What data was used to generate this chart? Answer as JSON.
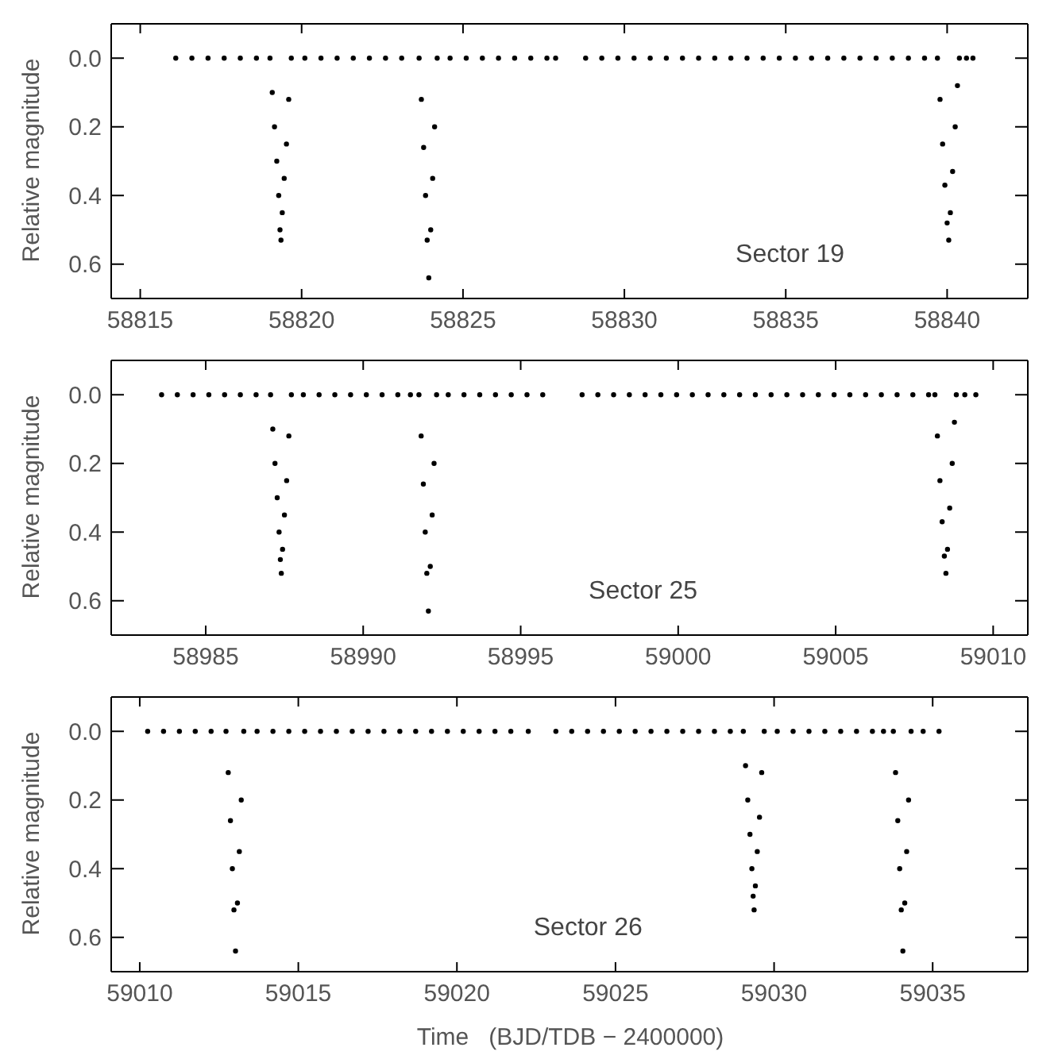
{
  "chart_data": [
    {
      "type": "scatter",
      "ylabel": "Relative magnitude",
      "annotations": [
        "Sector 19"
      ],
      "marker": "circle",
      "xlim": [
        58814.1,
        58842.5
      ],
      "xticks": [
        58815,
        58820,
        58825,
        58830,
        58835,
        58840
      ],
      "ylim": [
        0.7,
        -0.1
      ],
      "yticks": [
        {
          "value": 0,
          "label": "0.0"
        },
        {
          "value": 0.2,
          "label": "0.2"
        },
        {
          "value": 0.4,
          "label": "0.4"
        },
        {
          "value": 0.6,
          "label": "0.6"
        }
      ],
      "series": [
        {
          "color": "#000000",
          "x": [
            58816.1,
            58816.6,
            58817.1,
            58817.6,
            58818.1,
            58818.6,
            58819.02,
            58819.09,
            58819.16,
            58819.23,
            58819.29,
            58819.33,
            58819.36,
            58819.4,
            58819.46,
            58819.53,
            58819.6,
            58819.68,
            58820.1,
            58820.6,
            58821.1,
            58821.6,
            58822.1,
            58822.6,
            58823.1,
            58823.64,
            58823.71,
            58823.78,
            58823.84,
            58823.89,
            58823.94,
            58824.0,
            58824.06,
            58824.12,
            58824.2,
            58824.6,
            58825.1,
            58825.6,
            58826.1,
            58826.6,
            58827.1,
            58827.6,
            58827.87,
            58828.8,
            58829.3,
            58829.8,
            58830.3,
            58830.8,
            58831.3,
            58831.8,
            58832.3,
            58832.8,
            58833.3,
            58833.8,
            58834.3,
            58834.8,
            58835.3,
            58835.8,
            58836.3,
            58836.8,
            58837.3,
            58837.8,
            58838.3,
            58838.8,
            58839.3,
            58839.7,
            58839.78,
            58839.86,
            58839.93,
            58840.0,
            58840.05,
            58840.1,
            58840.17,
            58840.25,
            58840.32,
            58840.38,
            58840.6,
            58840.8
          ],
          "values": [
            0,
            0,
            0,
            0,
            0,
            0,
            0,
            0.1,
            0.2,
            0.3,
            0.4,
            0.5,
            0.53,
            0.45,
            0.35,
            0.25,
            0.12,
            0,
            0,
            0,
            0,
            0,
            0,
            0,
            0,
            0,
            0.12,
            0.26,
            0.4,
            0.53,
            0.64,
            0.5,
            0.35,
            0.2,
            0,
            0,
            0,
            0,
            0,
            0,
            0,
            0,
            0,
            0,
            0,
            0,
            0,
            0,
            0,
            0,
            0,
            0,
            0,
            0,
            0,
            0,
            0,
            0,
            0,
            0,
            0,
            0,
            0,
            0,
            0,
            0,
            0.12,
            0.25,
            0.37,
            0.48,
            0.53,
            0.45,
            0.33,
            0.2,
            0.08,
            0,
            0,
            0
          ]
        }
      ]
    },
    {
      "type": "scatter",
      "ylabel": "Relative magnitude",
      "annotations": [
        "Sector 25"
      ],
      "marker": "circle",
      "xlim": [
        58982.0,
        59011.1
      ],
      "xticks": [
        58985,
        58990,
        58995,
        59000,
        59005,
        59010
      ],
      "ylim": [
        0.7,
        -0.1
      ],
      "yticks": [
        {
          "value": 0,
          "label": "0.0"
        },
        {
          "value": 0.2,
          "label": "0.2"
        },
        {
          "value": 0.4,
          "label": "0.4"
        },
        {
          "value": 0.6,
          "label": "0.6"
        }
      ],
      "series": [
        {
          "color": "#000000",
          "x": [
            58983.6,
            58984.1,
            58984.6,
            58985.1,
            58985.6,
            58986.1,
            58986.6,
            58987.06,
            58987.13,
            58987.2,
            58987.27,
            58987.33,
            58987.37,
            58987.4,
            58987.44,
            58987.5,
            58987.57,
            58987.64,
            58987.72,
            58988.1,
            58988.6,
            58989.1,
            58989.6,
            58990.1,
            58990.6,
            58991.1,
            58991.5,
            58991.77,
            58991.84,
            58991.91,
            58991.97,
            58992.02,
            58992.07,
            58992.13,
            58992.19,
            58992.25,
            58992.33,
            58992.7,
            58993.2,
            58993.7,
            58994.2,
            58994.7,
            58995.2,
            58995.7,
            58996.95,
            58997.45,
            58997.95,
            58998.45,
            58998.95,
            58999.45,
            58999.95,
            59000.45,
            59000.95,
            59001.45,
            59001.95,
            59002.45,
            59002.95,
            59003.45,
            59003.95,
            59004.45,
            59004.95,
            59005.45,
            59005.95,
            59006.45,
            59006.95,
            59007.45,
            59007.95,
            59008.15,
            59008.23,
            59008.31,
            59008.38,
            59008.45,
            59008.5,
            59008.55,
            59008.62,
            59008.7,
            59008.77,
            59008.83,
            59009.1,
            59009.45
          ],
          "values": [
            0,
            0,
            0,
            0,
            0,
            0,
            0,
            0,
            0.1,
            0.2,
            0.3,
            0.4,
            0.48,
            0.52,
            0.45,
            0.35,
            0.25,
            0.12,
            0,
            0,
            0,
            0,
            0,
            0,
            0,
            0,
            0,
            0,
            0.12,
            0.26,
            0.4,
            0.52,
            0.63,
            0.5,
            0.35,
            0.2,
            0,
            0,
            0,
            0,
            0,
            0,
            0,
            0,
            0,
            0,
            0,
            0,
            0,
            0,
            0,
            0,
            0,
            0,
            0,
            0,
            0,
            0,
            0,
            0,
            0,
            0,
            0,
            0,
            0,
            0,
            0,
            0,
            0.12,
            0.25,
            0.37,
            0.47,
            0.52,
            0.45,
            0.33,
            0.2,
            0.08,
            0,
            0,
            0
          ]
        }
      ]
    },
    {
      "type": "scatter",
      "ylabel": "Relative magnitude",
      "xlabel": "Time   (BJD/TDB − 2400000)",
      "annotations": [
        "Sector 26"
      ],
      "marker": "circle",
      "xlim": [
        59009.1,
        59038.0
      ],
      "xticks": [
        59010,
        59015,
        59020,
        59025,
        59030,
        59035
      ],
      "ylim": [
        0.7,
        -0.1
      ],
      "yticks": [
        {
          "value": 0,
          "label": "0.0"
        },
        {
          "value": 0.2,
          "label": "0.2"
        },
        {
          "value": 0.4,
          "label": "0.4"
        },
        {
          "value": 0.6,
          "label": "0.6"
        }
      ],
      "series": [
        {
          "color": "#000000",
          "x": [
            59010.25,
            59010.75,
            59011.25,
            59011.75,
            59012.25,
            59012.72,
            59012.79,
            59012.86,
            59012.92,
            59012.97,
            59013.02,
            59013.08,
            59013.14,
            59013.2,
            59013.28,
            59013.7,
            59014.2,
            59014.7,
            59015.2,
            59015.7,
            59016.2,
            59016.7,
            59017.2,
            59017.7,
            59018.2,
            59018.7,
            59019.2,
            59019.7,
            59020.2,
            59020.7,
            59021.2,
            59021.7,
            59022.25,
            59023.12,
            59023.62,
            59024.12,
            59024.62,
            59025.12,
            59025.62,
            59026.12,
            59026.62,
            59027.12,
            59027.62,
            59028.12,
            59028.62,
            59029.03,
            59029.1,
            59029.17,
            59029.24,
            59029.3,
            59029.34,
            59029.37,
            59029.41,
            59029.47,
            59029.54,
            59029.61,
            59029.69,
            59030.1,
            59030.6,
            59031.1,
            59031.6,
            59032.1,
            59032.6,
            59033.1,
            59033.45,
            59033.76,
            59033.83,
            59033.9,
            59033.96,
            59034.01,
            59034.06,
            59034.12,
            59034.18,
            59034.24,
            59034.32,
            59034.7,
            59035.2
          ],
          "values": [
            0,
            0,
            0,
            0,
            0,
            0,
            0.12,
            0.26,
            0.4,
            0.52,
            0.64,
            0.5,
            0.35,
            0.2,
            0,
            0,
            0,
            0,
            0,
            0,
            0,
            0,
            0,
            0,
            0,
            0,
            0,
            0,
            0,
            0,
            0,
            0,
            0,
            0,
            0,
            0,
            0,
            0,
            0,
            0,
            0,
            0,
            0,
            0,
            0,
            0,
            0.1,
            0.2,
            0.3,
            0.4,
            0.48,
            0.52,
            0.45,
            0.35,
            0.25,
            0.12,
            0,
            0,
            0,
            0,
            0,
            0,
            0,
            0,
            0,
            0,
            0.12,
            0.26,
            0.4,
            0.52,
            0.64,
            0.5,
            0.35,
            0.2,
            0,
            0,
            0
          ]
        }
      ]
    }
  ]
}
